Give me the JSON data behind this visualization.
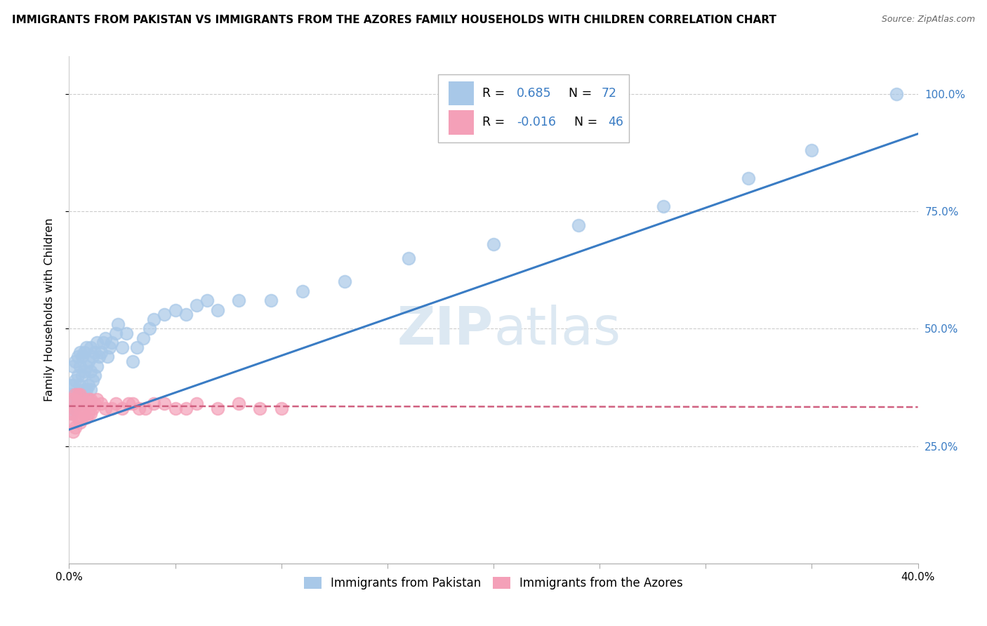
{
  "title": "IMMIGRANTS FROM PAKISTAN VS IMMIGRANTS FROM THE AZORES FAMILY HOUSEHOLDS WITH CHILDREN CORRELATION CHART",
  "source": "Source: ZipAtlas.com",
  "ylabel": "Family Households with Children",
  "xmin": 0.0,
  "xmax": 0.4,
  "ymin": 0.0,
  "ymax": 1.08,
  "yticks": [
    0.25,
    0.5,
    0.75,
    1.0
  ],
  "ytick_labels": [
    "25.0%",
    "50.0%",
    "75.0%",
    "100.0%"
  ],
  "pakistan_color": "#a8c8e8",
  "azores_color": "#f4a0b8",
  "pakistan_line_color": "#3a7cc4",
  "azores_line_color": "#d06080",
  "legend_label_1": "Immigrants from Pakistan",
  "legend_label_2": "Immigrants from the Azores",
  "watermark_zip": "ZIP",
  "watermark_atlas": "atlas",
  "r_color": "#3a7cc4",
  "pakistan_x": [
    0.001,
    0.001,
    0.001,
    0.001,
    0.002,
    0.002,
    0.002,
    0.002,
    0.003,
    0.003,
    0.003,
    0.003,
    0.004,
    0.004,
    0.004,
    0.005,
    0.005,
    0.005,
    0.005,
    0.006,
    0.006,
    0.006,
    0.007,
    0.007,
    0.007,
    0.008,
    0.008,
    0.008,
    0.009,
    0.009,
    0.01,
    0.01,
    0.01,
    0.011,
    0.011,
    0.012,
    0.012,
    0.013,
    0.013,
    0.014,
    0.015,
    0.016,
    0.017,
    0.018,
    0.019,
    0.02,
    0.022,
    0.023,
    0.025,
    0.027,
    0.03,
    0.032,
    0.035,
    0.038,
    0.04,
    0.045,
    0.05,
    0.055,
    0.06,
    0.065,
    0.07,
    0.08,
    0.095,
    0.11,
    0.13,
    0.16,
    0.2,
    0.24,
    0.28,
    0.32,
    0.35,
    0.39
  ],
  "pakistan_y": [
    0.32,
    0.34,
    0.36,
    0.38,
    0.33,
    0.35,
    0.38,
    0.42,
    0.34,
    0.36,
    0.39,
    0.43,
    0.35,
    0.4,
    0.44,
    0.34,
    0.38,
    0.42,
    0.45,
    0.36,
    0.4,
    0.44,
    0.37,
    0.41,
    0.45,
    0.37,
    0.42,
    0.46,
    0.38,
    0.43,
    0.37,
    0.41,
    0.46,
    0.39,
    0.44,
    0.4,
    0.45,
    0.42,
    0.47,
    0.44,
    0.45,
    0.47,
    0.48,
    0.44,
    0.46,
    0.47,
    0.49,
    0.51,
    0.46,
    0.49,
    0.43,
    0.46,
    0.48,
    0.5,
    0.52,
    0.53,
    0.54,
    0.53,
    0.55,
    0.56,
    0.54,
    0.56,
    0.56,
    0.58,
    0.6,
    0.65,
    0.68,
    0.72,
    0.76,
    0.82,
    0.88,
    1.0
  ],
  "azores_x": [
    0.001,
    0.001,
    0.001,
    0.002,
    0.002,
    0.002,
    0.003,
    0.003,
    0.003,
    0.004,
    0.004,
    0.004,
    0.005,
    0.005,
    0.005,
    0.006,
    0.006,
    0.007,
    0.007,
    0.008,
    0.008,
    0.009,
    0.009,
    0.01,
    0.01,
    0.011,
    0.012,
    0.013,
    0.015,
    0.017,
    0.02,
    0.022,
    0.025,
    0.028,
    0.03,
    0.033,
    0.036,
    0.04,
    0.045,
    0.05,
    0.055,
    0.06,
    0.07,
    0.08,
    0.09,
    0.1
  ],
  "azores_y": [
    0.3,
    0.32,
    0.35,
    0.28,
    0.32,
    0.35,
    0.29,
    0.33,
    0.36,
    0.31,
    0.34,
    0.36,
    0.3,
    0.33,
    0.36,
    0.31,
    0.34,
    0.32,
    0.35,
    0.31,
    0.34,
    0.32,
    0.35,
    0.32,
    0.35,
    0.33,
    0.34,
    0.35,
    0.34,
    0.33,
    0.33,
    0.34,
    0.33,
    0.34,
    0.34,
    0.33,
    0.33,
    0.34,
    0.34,
    0.33,
    0.33,
    0.34,
    0.33,
    0.34,
    0.33,
    0.33
  ]
}
